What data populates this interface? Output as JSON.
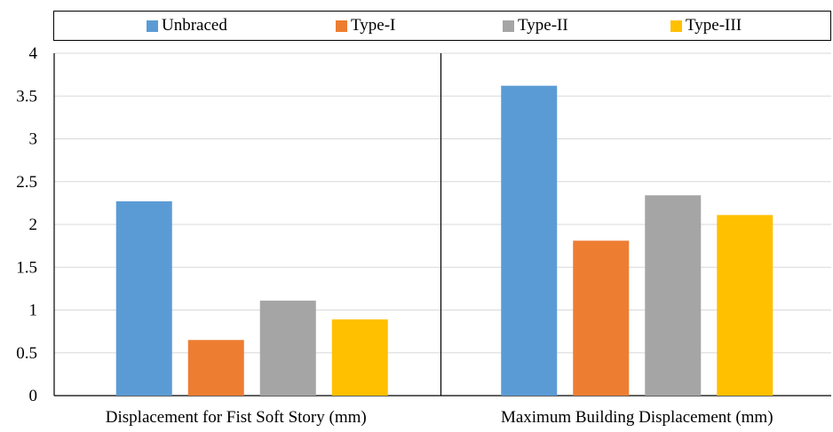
{
  "chart_data": {
    "type": "bar",
    "categories": [
      "Displacement for Fist Soft Story (mm)",
      "Maximum Building Displacement (mm)"
    ],
    "series": [
      {
        "name": "Unbraced",
        "values": [
          2.27,
          3.62
        ],
        "color": "#5B9BD5"
      },
      {
        "name": "Type-I",
        "values": [
          0.65,
          1.81
        ],
        "color": "#ED7D31"
      },
      {
        "name": "Type-II",
        "values": [
          1.11,
          2.34
        ],
        "color": "#A5A5A5"
      },
      {
        "name": "Type-III",
        "values": [
          0.89,
          2.11
        ],
        "color": "#FFC000"
      }
    ],
    "yticks": [
      "0",
      "0.5",
      "1",
      "1.5",
      "2",
      "2.5",
      "3",
      "3.5",
      "4"
    ],
    "ylim": [
      0,
      4
    ],
    "grid": true,
    "legend_position": "top"
  }
}
